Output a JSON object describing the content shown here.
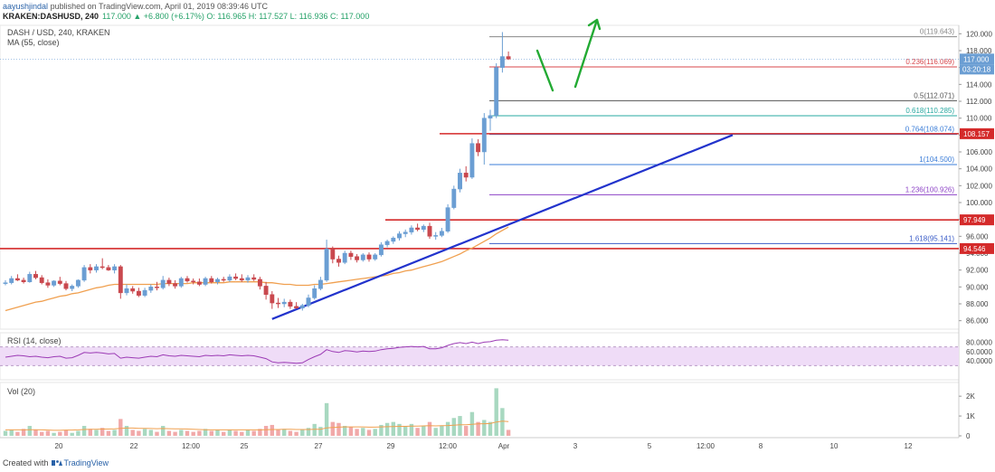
{
  "header": {
    "author": "aayushjindal",
    "published": "published on TradingView.com, April 01, 2019 08:39:46 UTC",
    "symbol": "KRAKEN:DASHUSD, 240",
    "ohlc": "117.000 ▲ +6.800 (+6.17%) O: 116.965 H: 117.527 L: 116.936 C: 117.000"
  },
  "legend": {
    "pair": "DASH / USD, 240, KRAKEN",
    "ma": "MA (55, close)",
    "rsi": "RSI (14, close)",
    "vol": "Vol (20)"
  },
  "footer": {
    "created": "Created with",
    "brand": "TradingView"
  },
  "colors": {
    "up": "#6b9ed3",
    "down": "#c9484e",
    "ma": "#f0a050",
    "trend": "#2233cc",
    "rsi": "#9c3bb5",
    "rsi_band": "#efdcf7",
    "resistance": "#d42a2a",
    "arrow": "#22aa33"
  },
  "chart_data": {
    "type": "candlestick",
    "price_axis": {
      "min": 85,
      "max": 121,
      "ticks": [
        86,
        88,
        90,
        92,
        94,
        96,
        98,
        100,
        102,
        104,
        106,
        108,
        110,
        112,
        114,
        116,
        118,
        120
      ]
    },
    "x_labels": [
      "20",
      "22",
      "12:00",
      "25",
      "27",
      "29",
      "12:00",
      "Apr",
      "3",
      "5",
      "12:00",
      "8",
      "10",
      "12"
    ],
    "current_price": "117.000",
    "countdown": "03:20:18",
    "price_tags": [
      "108.157",
      "97.949",
      "94.546"
    ],
    "resistance_levels": [
      108.157,
      97.949,
      94.546
    ],
    "fibonacci": [
      {
        "label": "0(119.643)",
        "level": 119.643,
        "color": "#888888"
      },
      {
        "label": "0.236(116.069)",
        "level": 116.069,
        "color": "#d8474b"
      },
      {
        "label": "0.5(112.071)",
        "level": 112.071,
        "color": "#555555"
      },
      {
        "label": "0.618(110.285)",
        "level": 110.285,
        "color": "#27a8a0"
      },
      {
        "label": "0.764(108.074)",
        "level": 108.074,
        "color": "#3b7dd8"
      },
      {
        "label": "1(104.500)",
        "level": 104.5,
        "color": "#3b7dd8"
      },
      {
        "label": "1.236(100.926)",
        "level": 100.926,
        "color": "#8e44c7"
      },
      {
        "label": "1.618(95.141)",
        "level": 95.141,
        "color": "#3b5dc8"
      }
    ],
    "candles": [
      [
        90.4,
        90.8,
        90.2,
        90.5
      ],
      [
        90.5,
        91.3,
        90.3,
        91.0
      ],
      [
        91.0,
        91.5,
        90.7,
        90.8
      ],
      [
        90.8,
        91.1,
        90.4,
        90.6
      ],
      [
        90.6,
        91.8,
        90.5,
        91.5
      ],
      [
        91.5,
        91.9,
        90.9,
        91.1
      ],
      [
        91.1,
        91.4,
        90.3,
        90.5
      ],
      [
        90.5,
        90.9,
        89.9,
        90.2
      ],
      [
        90.2,
        90.8,
        90.0,
        90.7
      ],
      [
        90.7,
        91.2,
        90.2,
        90.4
      ],
      [
        90.4,
        90.7,
        89.6,
        89.8
      ],
      [
        89.8,
        90.3,
        89.5,
        90.1
      ],
      [
        90.1,
        90.9,
        89.9,
        90.8
      ],
      [
        90.8,
        92.6,
        90.6,
        92.3
      ],
      [
        92.3,
        92.7,
        91.6,
        92.0
      ],
      [
        92.0,
        92.7,
        91.7,
        92.4
      ],
      [
        92.4,
        93.4,
        92.1,
        92.3
      ],
      [
        92.3,
        92.6,
        91.9,
        92.0
      ],
      [
        92.0,
        92.7,
        91.6,
        92.4
      ],
      [
        92.4,
        92.6,
        88.6,
        89.3
      ],
      [
        89.3,
        90.3,
        89.0,
        89.8
      ],
      [
        89.8,
        90.1,
        89.2,
        89.5
      ],
      [
        89.5,
        89.9,
        88.8,
        89.0
      ],
      [
        89.0,
        89.9,
        88.8,
        89.6
      ],
      [
        89.6,
        90.3,
        89.3,
        90.0
      ],
      [
        90.0,
        90.6,
        89.6,
        89.9
      ],
      [
        89.9,
        91.3,
        89.7,
        90.8
      ],
      [
        90.8,
        91.1,
        90.1,
        90.4
      ],
      [
        90.4,
        90.8,
        89.8,
        90.1
      ],
      [
        90.1,
        91.2,
        89.9,
        91.0
      ],
      [
        91.0,
        91.3,
        90.5,
        90.7
      ],
      [
        90.7,
        91.0,
        90.3,
        90.6
      ],
      [
        90.6,
        91.0,
        90.1,
        90.3
      ],
      [
        90.3,
        91.2,
        90.1,
        91.0
      ],
      [
        91.0,
        91.3,
        90.4,
        90.6
      ],
      [
        90.6,
        91.1,
        90.3,
        90.9
      ],
      [
        90.9,
        91.2,
        90.6,
        90.8
      ],
      [
        90.8,
        91.5,
        90.6,
        91.2
      ],
      [
        91.2,
        91.6,
        90.8,
        91.0
      ],
      [
        91.0,
        91.5,
        90.6,
        90.8
      ],
      [
        90.8,
        91.4,
        90.5,
        91.1
      ],
      [
        91.1,
        91.5,
        90.7,
        90.9
      ],
      [
        90.9,
        91.2,
        89.7,
        90.1
      ],
      [
        90.1,
        90.6,
        88.5,
        89.1
      ],
      [
        89.1,
        89.5,
        87.4,
        88.1
      ],
      [
        88.1,
        88.7,
        87.5,
        88.0
      ],
      [
        88.0,
        88.6,
        87.6,
        88.2
      ],
      [
        88.2,
        88.5,
        87.4,
        87.7
      ],
      [
        87.7,
        88.2,
        87.4,
        87.5
      ],
      [
        87.5,
        88.0,
        87.2,
        87.8
      ],
      [
        87.8,
        89.1,
        87.6,
        88.7
      ],
      [
        88.7,
        90.2,
        88.5,
        89.8
      ],
      [
        89.8,
        91.2,
        89.6,
        90.8
      ],
      [
        90.8,
        95.6,
        90.6,
        94.5
      ],
      [
        94.5,
        94.8,
        92.8,
        93.3
      ],
      [
        93.3,
        93.7,
        92.4,
        92.9
      ],
      [
        92.9,
        94.3,
        92.7,
        94.0
      ],
      [
        94.0,
        94.3,
        93.2,
        93.6
      ],
      [
        93.6,
        93.9,
        92.9,
        93.2
      ],
      [
        93.2,
        94.0,
        93.0,
        93.8
      ],
      [
        93.8,
        94.1,
        93.0,
        93.3
      ],
      [
        93.3,
        94.0,
        93.1,
        93.8
      ],
      [
        93.8,
        95.3,
        93.6,
        95.0
      ],
      [
        95.0,
        95.6,
        94.7,
        95.4
      ],
      [
        95.4,
        96.0,
        95.1,
        95.8
      ],
      [
        95.8,
        96.6,
        95.5,
        96.3
      ],
      [
        96.3,
        96.8,
        95.9,
        96.5
      ],
      [
        96.5,
        97.3,
        96.2,
        97.0
      ],
      [
        97.0,
        97.5,
        96.6,
        96.8
      ],
      [
        96.8,
        97.4,
        96.5,
        97.2
      ],
      [
        97.2,
        97.6,
        95.7,
        96.0
      ],
      [
        96.0,
        96.5,
        95.6,
        96.1
      ],
      [
        96.1,
        97.0,
        95.9,
        96.6
      ],
      [
        96.6,
        99.8,
        96.4,
        99.4
      ],
      [
        99.4,
        102.0,
        99.2,
        101.6
      ],
      [
        101.6,
        104.0,
        101.2,
        103.5
      ],
      [
        103.5,
        104.3,
        102.5,
        103.0
      ],
      [
        103.0,
        107.6,
        102.8,
        107.0
      ],
      [
        107.0,
        107.5,
        105.5,
        106.0
      ],
      [
        106.0,
        110.6,
        104.5,
        110.0
      ],
      [
        110.0,
        111.0,
        108.5,
        110.3
      ],
      [
        110.3,
        116.5,
        110.0,
        116.0
      ],
      [
        116.0,
        120.2,
        115.4,
        117.3
      ],
      [
        117.3,
        117.9,
        116.9,
        117.0
      ]
    ],
    "ma55": [
      87.2,
      87.4,
      87.6,
      87.8,
      88.0,
      88.2,
      88.3,
      88.5,
      88.7,
      88.9,
      89.0,
      89.2,
      89.3,
      89.5,
      89.7,
      89.9,
      90.0,
      90.2,
      90.3,
      90.3,
      90.3,
      90.3,
      90.3,
      90.3,
      90.3,
      90.3,
      90.4,
      90.4,
      90.4,
      90.4,
      90.4,
      90.5,
      90.5,
      90.5,
      90.5,
      90.5,
      90.5,
      90.6,
      90.6,
      90.6,
      90.6,
      90.6,
      90.6,
      90.5,
      90.5,
      90.4,
      90.3,
      90.3,
      90.2,
      90.2,
      90.2,
      90.3,
      90.3,
      90.4,
      90.5,
      90.6,
      90.7,
      90.8,
      90.9,
      91.0,
      91.1,
      91.2,
      91.3,
      91.4,
      91.6,
      91.7,
      91.9,
      92.0,
      92.2,
      92.4,
      92.6,
      92.8,
      93.0,
      93.3,
      93.6,
      93.9,
      94.3,
      94.6,
      95.0,
      95.4,
      95.8,
      96.3,
      96.7,
      97.1
    ],
    "trendline": {
      "from": {
        "i": 44,
        "price": 86.2
      },
      "to": {
        "i": 120,
        "price": 108.0
      }
    },
    "rsi": {
      "ticks": [
        "80.0000",
        "60.0000",
        "40.0000"
      ],
      "band": [
        30,
        70
      ],
      "values": [
        48,
        50,
        52,
        51,
        49,
        50,
        48,
        47,
        49,
        50,
        46,
        47,
        52,
        58,
        57,
        58,
        57,
        55,
        56,
        46,
        48,
        47,
        46,
        48,
        50,
        49,
        53,
        51,
        50,
        52,
        51,
        50,
        49,
        52,
        51,
        52,
        51,
        53,
        52,
        51,
        52,
        51,
        48,
        45,
        38,
        36,
        37,
        36,
        35,
        36,
        43,
        49,
        54,
        64,
        60,
        58,
        62,
        61,
        59,
        61,
        60,
        61,
        64,
        66,
        67,
        69,
        70,
        71,
        70,
        71,
        66,
        66,
        68,
        73,
        77,
        79,
        77,
        80,
        77,
        80,
        81,
        84,
        85,
        84
      ]
    },
    "volume": {
      "ticks": [
        "2K",
        "1K",
        "0"
      ],
      "max": 2600,
      "values": [
        250,
        300,
        200,
        350,
        500,
        300,
        200,
        250,
        150,
        200,
        300,
        150,
        250,
        500,
        350,
        300,
        400,
        250,
        300,
        850,
        500,
        300,
        250,
        350,
        300,
        200,
        500,
        250,
        200,
        300,
        250,
        200,
        250,
        350,
        250,
        300,
        200,
        300,
        250,
        200,
        300,
        250,
        350,
        500,
        550,
        300,
        350,
        250,
        200,
        300,
        400,
        600,
        450,
        1650,
        700,
        650,
        500,
        450,
        350,
        400,
        300,
        350,
        550,
        650,
        700,
        600,
        500,
        600,
        400,
        500,
        700,
        400,
        500,
        700,
        900,
        1000,
        500,
        1200,
        700,
        800,
        700,
        2400,
        1400,
        300
      ],
      "ma": [
        300,
        300,
        300,
        300,
        310,
        310,
        300,
        290,
        280,
        280,
        290,
        290,
        300,
        320,
        330,
        330,
        340,
        340,
        350,
        380,
        390,
        390,
        380,
        380,
        370,
        360,
        370,
        360,
        350,
        350,
        340,
        330,
        320,
        310,
        300,
        300,
        300,
        300,
        300,
        300,
        300,
        300,
        300,
        310,
        320,
        320,
        330,
        330,
        320,
        320,
        320,
        330,
        330,
        400,
        420,
        440,
        450,
        450,
        450,
        450,
        440,
        440,
        450,
        460,
        470,
        480,
        480,
        490,
        490,
        500,
        510,
        500,
        510,
        520,
        540,
        560,
        560,
        580,
        600,
        610,
        620,
        700,
        740,
        720
      ]
    },
    "arrows": [
      {
        "from": [
          594,
          56
        ],
        "to": [
          611,
          100
        ],
        "head": false
      },
      {
        "from": [
          636,
          96
        ],
        "to": [
          660,
          22
        ],
        "head": true
      }
    ]
  }
}
